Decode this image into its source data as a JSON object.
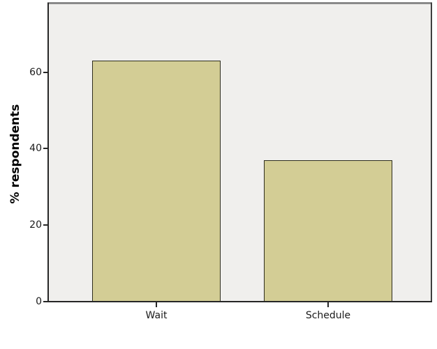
{
  "chart_data": {
    "type": "bar",
    "title": "",
    "categories": [
      "Wait",
      "Schedule"
    ],
    "values": [
      63,
      37
    ],
    "xlabel": "",
    "ylabel": "% respondents",
    "ylim": [
      0,
      78
    ],
    "y_ticks": [
      0,
      20,
      40,
      60
    ],
    "grid": false,
    "legend": "none",
    "colors": {
      "bar_fill": "#d3cd95",
      "bar_border": "#2e2d1e",
      "plot_background": "#f0efed",
      "axis_line": "#262626",
      "frame_top": "#8a8a8a",
      "frame_right": "#3f3f3f",
      "tick_label": "#1a1a1a",
      "outer_background": "#ffffff"
    }
  }
}
